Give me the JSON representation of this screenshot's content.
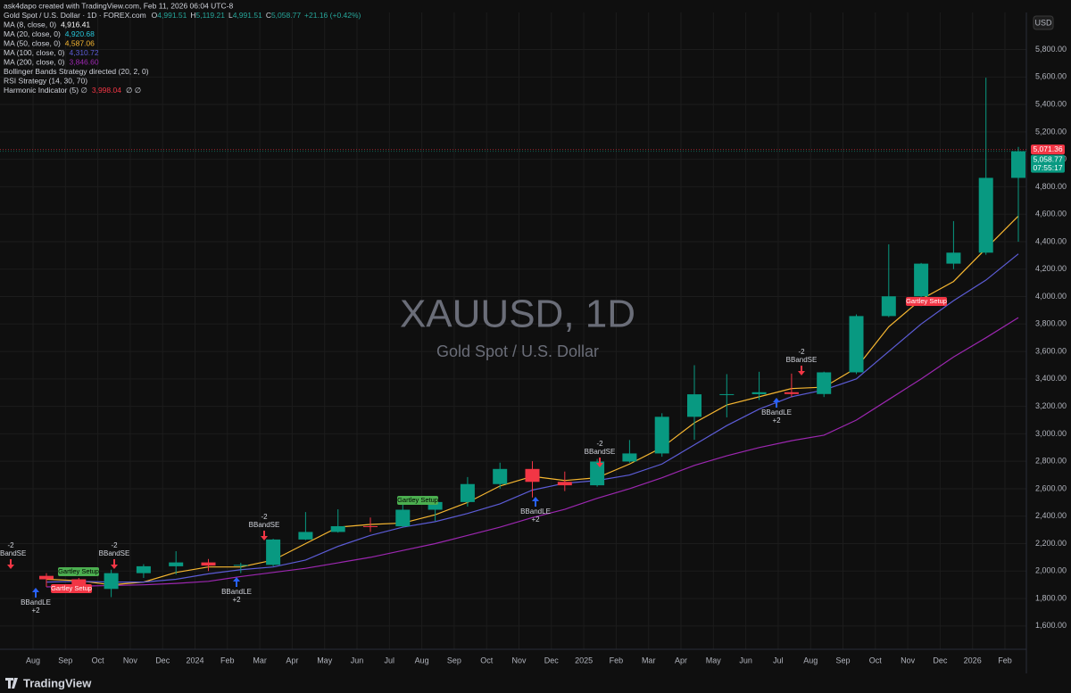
{
  "header": "ask4dapo created with TradingView.com, Feb 11, 2026 06:04 UTC-8",
  "symbol_line": {
    "name": "Gold Spot / U.S. Dollar · 1D · FOREX.com",
    "o": "O",
    "o_val": "4,991.51",
    "h": "H",
    "h_val": "5,119.21",
    "l": "L",
    "l_val": "4,991.51",
    "c": "C",
    "c_val": "5,058.77",
    "change": "+21.16 (+0.42%)"
  },
  "indicators": [
    {
      "name": "MA (8, close, 0)",
      "label": "4,916.41",
      "color": "#ffffff"
    },
    {
      "name": "MA (20, close, 0)",
      "label": "4,920.68",
      "color": "#26c6da"
    },
    {
      "name": "MA (50, close, 0)",
      "label": "4,587.06",
      "color": "#f7b731"
    },
    {
      "name": "MA (100, close, 0)",
      "label": "4,310.72",
      "color": "#5c5cd6"
    },
    {
      "name": "MA (200, close, 0)",
      "label": "3,846.60",
      "color": "#9c27b0"
    },
    {
      "name": "Bollinger Bands Strategy directed (20, 2, 0)"
    },
    {
      "name": "RSI Strategy (14, 30, 70)"
    },
    {
      "name": "Harmonic Indicator (5)  ∅",
      "label": "3,998.04",
      "color": "#f23645",
      "tail": "∅  ∅"
    }
  ],
  "watermark": {
    "title": "XAUUSD, 1D",
    "subtitle": "Gold Spot / U.S. Dollar"
  },
  "currency": "USD",
  "brand": "TradingView",
  "chart_data": {
    "type": "candlestick",
    "categories": [
      "Aug",
      "Sep",
      "Oct",
      "Nov",
      "Dec",
      "2024",
      "Feb",
      "Mar",
      "Apr",
      "May",
      "Jun",
      "Jul",
      "Aug",
      "Sep",
      "Oct",
      "Nov",
      "Dec",
      "2025",
      "Feb",
      "Mar",
      "Apr",
      "May",
      "Jun",
      "Jul",
      "Aug",
      "Sep",
      "Oct",
      "Nov",
      "Dec",
      "2026",
      "Feb"
    ],
    "open": [
      1965,
      1940,
      1870,
      1985,
      2035,
      2063,
      2040,
      2045,
      2230,
      2285,
      2327,
      2326,
      2447,
      2503,
      2634,
      2744,
      2650,
      2625,
      2798,
      2857,
      3124,
      3288,
      3289,
      3303,
      3290,
      3448,
      3858,
      4002,
      4240,
      4320,
      4865
    ],
    "high": [
      1985,
      1950,
      2010,
      2050,
      2145,
      2088,
      2060,
      2235,
      2430,
      2450,
      2390,
      2485,
      2530,
      2685,
      2790,
      2800,
      2725,
      2817,
      2955,
      3150,
      3500,
      3435,
      3452,
      3439,
      3453,
      3870,
      4381,
      4245,
      4550,
      5595,
      5090
    ],
    "low": [
      1885,
      1850,
      1810,
      1950,
      1975,
      2000,
      1985,
      2035,
      2225,
      2280,
      2285,
      2320,
      2365,
      2470,
      2600,
      2536,
      2583,
      2615,
      2790,
      2833,
      2957,
      3120,
      3247,
      3268,
      3268,
      3436,
      3850,
      3930,
      4200,
      4305,
      4400
    ],
    "close": [
      1940,
      1870,
      1985,
      2035,
      2063,
      2040,
      2045,
      2230,
      2285,
      2327,
      2326,
      2447,
      2503,
      2634,
      2744,
      2650,
      2625,
      2798,
      2857,
      3124,
      3288,
      3289,
      3303,
      3290,
      3448,
      3858,
      4002,
      4240,
      4320,
      4865,
      5058.77
    ],
    "up_color": "#089981",
    "down_color": "#f23645",
    "series": [
      {
        "name": "MA (50, close, 0)",
        "color": "#f7b731",
        "values": [
          1940,
          1930,
          1900,
          1920,
          1990,
          2030,
          2030,
          2080,
          2200,
          2320,
          2340,
          2350,
          2410,
          2500,
          2620,
          2690,
          2660,
          2680,
          2780,
          2900,
          3080,
          3210,
          3270,
          3330,
          3340,
          3480,
          3780,
          3980,
          4110,
          4350,
          4587.06
        ]
      },
      {
        "name": "MA (100, close, 0)",
        "color": "#5c5cd6",
        "values": [
          1920,
          1925,
          1920,
          1920,
          1940,
          1980,
          2010,
          2030,
          2080,
          2180,
          2260,
          2320,
          2360,
          2420,
          2490,
          2590,
          2640,
          2660,
          2700,
          2780,
          2920,
          3060,
          3180,
          3270,
          3320,
          3400,
          3600,
          3800,
          3970,
          4120,
          4310.72
        ]
      },
      {
        "name": "MA (200, close, 0)",
        "color": "#9c27b0",
        "values": [
          1885,
          1890,
          1895,
          1900,
          1910,
          1925,
          1960,
          1990,
          2020,
          2060,
          2100,
          2150,
          2200,
          2260,
          2320,
          2390,
          2450,
          2530,
          2600,
          2680,
          2770,
          2840,
          2900,
          2950,
          2990,
          3100,
          3250,
          3400,
          3560,
          3700,
          3846.6
        ]
      }
    ],
    "ylim": [
      1430,
      6070
    ],
    "yticks": [
      {
        "value": 1600,
        "label": "1,600.00"
      },
      {
        "value": 1800,
        "label": "1,800.00"
      },
      {
        "value": 2000,
        "label": "2,000.00"
      },
      {
        "value": 2200,
        "label": "2,200.00"
      },
      {
        "value": 2400,
        "label": "2,400.00"
      },
      {
        "value": 2600,
        "label": "2,600.00"
      },
      {
        "value": 2800,
        "label": "2,800.00"
      },
      {
        "value": 3000,
        "label": "3,000.00"
      },
      {
        "value": 3200,
        "label": "3,200.00"
      },
      {
        "value": 3400,
        "label": "3,400.00"
      },
      {
        "value": 3600,
        "label": "3,600.00"
      },
      {
        "value": 3800,
        "label": "3,800.00"
      },
      {
        "value": 4000,
        "label": "4,000.00"
      },
      {
        "value": 4200,
        "label": "4,200.00"
      },
      {
        "value": 4400,
        "label": "4,400.00"
      },
      {
        "value": 4600,
        "label": "4,600.00"
      },
      {
        "value": 4800,
        "label": "4,800.00"
      },
      {
        "value": 5000,
        "label": "5,000.00"
      },
      {
        "value": 5200,
        "label": "5,200.00"
      },
      {
        "value": 5400,
        "label": "5,400.00"
      },
      {
        "value": 5600,
        "label": "5,600.00"
      },
      {
        "value": 5800,
        "label": "5,800.00"
      }
    ],
    "grid": true,
    "price_tags": [
      {
        "value": 5071.36,
        "label": "5,071.36",
        "color": "#f23645"
      },
      {
        "value": 5058.77,
        "label": "5,058.77",
        "color": "#089981",
        "sub": "07:55:17"
      }
    ],
    "annotations": [
      {
        "note": "-2",
        "label": "BBandSE",
        "kind": "sell"
      },
      {
        "note": "+2",
        "label": "BBandLE",
        "kind": "buy"
      },
      {
        "label": "Gartley Setup",
        "kind": "bull"
      },
      {
        "label": "Gartley Setup",
        "kind": "bear"
      },
      {
        "note": "-2",
        "label": "BBandSE",
        "kind": "sell"
      },
      {
        "note": "+2",
        "label": "BBandLE",
        "kind": "buy"
      },
      {
        "note": "-2",
        "label": "BBandSE",
        "kind": "sell"
      },
      {
        "label": "Gartley Setup",
        "kind": "bull"
      },
      {
        "note": "-2",
        "label": "BBandSE",
        "kind": "sell"
      },
      {
        "note": "+2",
        "label": "BBandLE",
        "kind": "buy"
      },
      {
        "note": "-2",
        "label": "BBandSE",
        "kind": "sell"
      },
      {
        "note": "+2",
        "label": "BBandLE",
        "kind": "buy"
      },
      {
        "label": "Gartley Setup",
        "kind": "bear"
      }
    ]
  }
}
